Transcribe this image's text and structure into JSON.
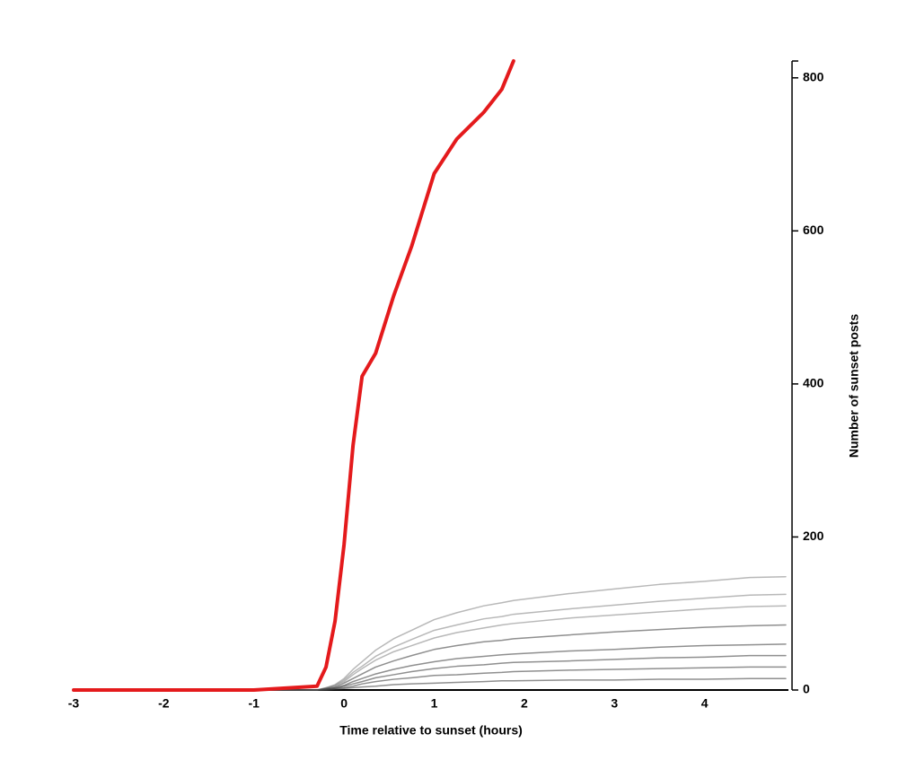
{
  "chart_data": {
    "type": "line",
    "xlabel": "Time relative to sunset (hours)",
    "ylabel": "Number of sunset posts",
    "x": [
      -3,
      -1,
      -0.3,
      -0.2,
      -0.1,
      0,
      0.1,
      0.2,
      0.35,
      0.55,
      0.75,
      1,
      1.25,
      1.55,
      1.75,
      1.88,
      2.5,
      3,
      3.5,
      4,
      4.5,
      4.9
    ],
    "series": [
      {
        "color": "#888888",
        "values": [
          0,
          0,
          0,
          3,
          7,
          15,
          27,
          37,
          52,
          67,
          78,
          92,
          101,
          110,
          114,
          117,
          126,
          132,
          138,
          142,
          147,
          148
        ]
      },
      {
        "color": "#888888",
        "values": [
          0,
          0,
          0,
          3,
          6,
          13,
          23,
          31,
          44,
          56,
          66,
          78,
          85,
          93,
          96,
          99,
          106,
          111,
          116,
          120,
          124,
          125
        ]
      },
      {
        "color": "#888888",
        "values": [
          0,
          0,
          0,
          2,
          6,
          11,
          20,
          28,
          39,
          50,
          58,
          68,
          75,
          81,
          85,
          87,
          94,
          98,
          102,
          106,
          109,
          110
        ]
      },
      {
        "color": "#444444",
        "values": [
          0,
          0,
          0,
          2,
          4,
          9,
          15,
          21,
          30,
          38,
          45,
          53,
          58,
          63,
          65,
          67,
          72,
          76,
          79,
          82,
          84,
          85
        ]
      },
      {
        "color": "#444444",
        "values": [
          0,
          0,
          0,
          1,
          3,
          6,
          11,
          15,
          21,
          27,
          32,
          37,
          41,
          44,
          46,
          47,
          51,
          53,
          56,
          58,
          59,
          60
        ]
      },
      {
        "color": "#444444",
        "values": [
          0,
          0,
          0,
          1,
          2,
          5,
          8,
          11,
          16,
          20,
          24,
          28,
          31,
          33,
          35,
          36,
          38,
          40,
          42,
          43,
          45,
          45
        ]
      },
      {
        "color": "#444444",
        "values": [
          0,
          0,
          0,
          1,
          2,
          3,
          5,
          8,
          11,
          14,
          16,
          19,
          20,
          22,
          23,
          24,
          26,
          27,
          28,
          29,
          30,
          30
        ]
      },
      {
        "color": "#444444",
        "values": [
          0,
          0,
          0,
          0,
          1,
          2,
          3,
          4,
          5,
          7,
          8,
          9,
          10,
          11,
          12,
          12,
          13,
          13,
          14,
          14,
          15,
          15
        ]
      },
      {
        "color": "#e41a1c",
        "values": [
          0,
          0,
          5,
          30,
          90,
          190,
          320,
          410,
          440,
          515,
          580,
          675,
          720,
          755,
          785,
          822,
          null,
          null,
          null,
          null,
          null,
          null
        ]
      }
    ],
    "xlim": [
      -3,
      4.93
    ],
    "xticks": [
      -3,
      -2,
      -1,
      0,
      1,
      2,
      3,
      4
    ],
    "ylim": [
      0,
      822
    ],
    "yticks": [
      0,
      200,
      400,
      600,
      800
    ],
    "grid": false
  }
}
